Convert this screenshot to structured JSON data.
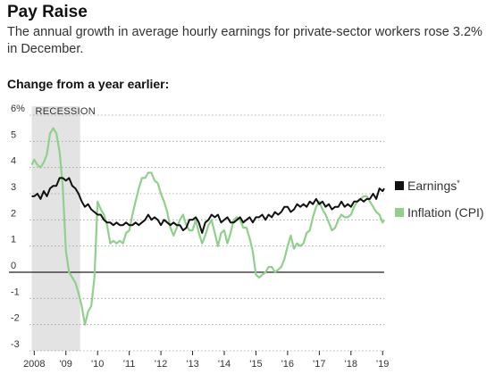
{
  "header": {
    "title": "Pay Raise",
    "subtitle": "The annual growth in average hourly earnings for private-sector workers rose 3.2% in December.",
    "section_label": "Change from a year earlier:"
  },
  "chart_data": {
    "type": "line",
    "title": "Pay Raise",
    "subtitle": "The annual growth in average hourly earnings for private-sector workers rose 3.2% in December.",
    "ylabel": "Change from a year earlier:",
    "ylim": [
      -3,
      6
    ],
    "xlim": [
      2007.85,
      2019.05
    ],
    "y_ticks": [
      -3,
      -2,
      -1,
      0,
      1,
      2,
      3,
      4,
      5,
      6
    ],
    "y_tick_labels": [
      "-3",
      "-2",
      "-1",
      "0",
      "1",
      "2",
      "3",
      "4",
      "5",
      "6%"
    ],
    "x_ticks": [
      2008,
      2009,
      2010,
      2011,
      2012,
      2013,
      2014,
      2015,
      2016,
      2017,
      2018,
      2019
    ],
    "x_tick_labels": [
      "2008",
      "'09",
      "'10",
      "'11",
      "'12",
      "'13",
      "'14",
      "'15",
      "'16",
      "'17",
      "'18",
      "'19"
    ],
    "recession": {
      "label": "RECESSION",
      "start": 2007.92,
      "end": 2009.45,
      "color": "#e3e3e3"
    },
    "legend": {
      "placement": "right"
    },
    "series": [
      {
        "name": "Earnings",
        "name_suffix": "*",
        "color": "#111111",
        "points": [
          [
            2007.92,
            2.9
          ],
          [
            2008.0,
            2.9
          ],
          [
            2008.1,
            3.0
          ],
          [
            2008.2,
            2.8
          ],
          [
            2008.3,
            3.1
          ],
          [
            2008.4,
            2.9
          ],
          [
            2008.5,
            3.2
          ],
          [
            2008.6,
            3.3
          ],
          [
            2008.7,
            3.3
          ],
          [
            2008.8,
            3.6
          ],
          [
            2008.9,
            3.6
          ],
          [
            2009.0,
            3.5
          ],
          [
            2009.1,
            3.6
          ],
          [
            2009.2,
            3.3
          ],
          [
            2009.3,
            3.2
          ],
          [
            2009.4,
            3.0
          ],
          [
            2009.5,
            2.7
          ],
          [
            2009.6,
            2.5
          ],
          [
            2009.7,
            2.6
          ],
          [
            2009.8,
            2.4
          ],
          [
            2009.9,
            2.3
          ],
          [
            2010.0,
            2.2
          ],
          [
            2010.1,
            2.2
          ],
          [
            2010.2,
            2.0
          ],
          [
            2010.3,
            1.9
          ],
          [
            2010.4,
            1.9
          ],
          [
            2010.5,
            1.8
          ],
          [
            2010.6,
            1.9
          ],
          [
            2010.7,
            1.8
          ],
          [
            2010.8,
            1.8
          ],
          [
            2010.9,
            1.9
          ],
          [
            2011.0,
            1.8
          ],
          [
            2011.1,
            1.8
          ],
          [
            2011.2,
            1.9
          ],
          [
            2011.3,
            1.8
          ],
          [
            2011.4,
            1.9
          ],
          [
            2011.5,
            2.0
          ],
          [
            2011.6,
            2.2
          ],
          [
            2011.7,
            2.0
          ],
          [
            2011.8,
            2.1
          ],
          [
            2011.9,
            2.0
          ],
          [
            2012.0,
            1.8
          ],
          [
            2012.1,
            2.0
          ],
          [
            2012.2,
            1.9
          ],
          [
            2012.3,
            1.8
          ],
          [
            2012.4,
            1.9
          ],
          [
            2012.5,
            1.8
          ],
          [
            2012.6,
            1.8
          ],
          [
            2012.7,
            1.6
          ],
          [
            2012.8,
            1.7
          ],
          [
            2012.9,
            2.0
          ],
          [
            2013.0,
            2.0
          ],
          [
            2013.1,
            2.1
          ],
          [
            2013.2,
            1.9
          ],
          [
            2013.3,
            1.5
          ],
          [
            2013.4,
            1.9
          ],
          [
            2013.5,
            2.0
          ],
          [
            2013.6,
            2.2
          ],
          [
            2013.7,
            2.1
          ],
          [
            2013.8,
            2.2
          ],
          [
            2013.9,
            1.9
          ],
          [
            2014.0,
            2.0
          ],
          [
            2014.1,
            2.1
          ],
          [
            2014.2,
            1.9
          ],
          [
            2014.3,
            1.9
          ],
          [
            2014.4,
            2.0
          ],
          [
            2014.5,
            2.1
          ],
          [
            2014.6,
            1.9
          ],
          [
            2014.7,
            2.0
          ],
          [
            2014.8,
            2.1
          ],
          [
            2014.9,
            1.9
          ],
          [
            2015.0,
            2.1
          ],
          [
            2015.1,
            2.1
          ],
          [
            2015.2,
            2.2
          ],
          [
            2015.3,
            2.0
          ],
          [
            2015.4,
            2.2
          ],
          [
            2015.5,
            2.1
          ],
          [
            2015.6,
            2.3
          ],
          [
            2015.7,
            2.2
          ],
          [
            2015.8,
            2.3
          ],
          [
            2015.9,
            2.5
          ],
          [
            2016.0,
            2.5
          ],
          [
            2016.1,
            2.3
          ],
          [
            2016.2,
            2.4
          ],
          [
            2016.3,
            2.6
          ],
          [
            2016.4,
            2.5
          ],
          [
            2016.5,
            2.6
          ],
          [
            2016.6,
            2.5
          ],
          [
            2016.7,
            2.7
          ],
          [
            2016.8,
            2.6
          ],
          [
            2016.9,
            2.8
          ],
          [
            2017.0,
            2.6
          ],
          [
            2017.1,
            2.7
          ],
          [
            2017.2,
            2.5
          ],
          [
            2017.3,
            2.6
          ],
          [
            2017.4,
            2.4
          ],
          [
            2017.5,
            2.5
          ],
          [
            2017.6,
            2.5
          ],
          [
            2017.7,
            2.7
          ],
          [
            2017.8,
            2.5
          ],
          [
            2017.9,
            2.6
          ],
          [
            2018.0,
            2.5
          ],
          [
            2018.1,
            2.7
          ],
          [
            2018.2,
            2.7
          ],
          [
            2018.3,
            2.8
          ],
          [
            2018.4,
            2.7
          ],
          [
            2018.5,
            2.8
          ],
          [
            2018.6,
            2.8
          ],
          [
            2018.7,
            3.0
          ],
          [
            2018.8,
            2.8
          ],
          [
            2018.9,
            3.2
          ],
          [
            2019.0,
            3.1
          ],
          [
            2019.05,
            3.2
          ]
        ]
      },
      {
        "name": "Inflation (CPI)",
        "color": "#8fd18a",
        "points": [
          [
            2007.92,
            4.1
          ],
          [
            2008.0,
            4.3
          ],
          [
            2008.1,
            4.1
          ],
          [
            2008.2,
            4.0
          ],
          [
            2008.3,
            4.2
          ],
          [
            2008.4,
            4.5
          ],
          [
            2008.5,
            5.3
          ],
          [
            2008.6,
            5.5
          ],
          [
            2008.7,
            5.3
          ],
          [
            2008.8,
            4.6
          ],
          [
            2008.9,
            3.3
          ],
          [
            2009.0,
            0.8
          ],
          [
            2009.1,
            0.0
          ],
          [
            2009.2,
            -0.2
          ],
          [
            2009.3,
            -0.4
          ],
          [
            2009.4,
            -0.8
          ],
          [
            2009.5,
            -1.3
          ],
          [
            2009.6,
            -2.0
          ],
          [
            2009.7,
            -1.5
          ],
          [
            2009.8,
            -1.3
          ],
          [
            2009.9,
            -0.2
          ],
          [
            2010.0,
            2.7
          ],
          [
            2010.1,
            2.4
          ],
          [
            2010.2,
            2.2
          ],
          [
            2010.3,
            1.8
          ],
          [
            2010.4,
            1.1
          ],
          [
            2010.5,
            1.2
          ],
          [
            2010.6,
            1.1
          ],
          [
            2010.7,
            1.2
          ],
          [
            2010.8,
            1.1
          ],
          [
            2010.9,
            1.5
          ],
          [
            2011.0,
            1.6
          ],
          [
            2011.1,
            2.2
          ],
          [
            2011.2,
            2.7
          ],
          [
            2011.3,
            3.2
          ],
          [
            2011.4,
            3.6
          ],
          [
            2011.5,
            3.6
          ],
          [
            2011.6,
            3.8
          ],
          [
            2011.7,
            3.8
          ],
          [
            2011.8,
            3.5
          ],
          [
            2011.9,
            3.4
          ],
          [
            2012.0,
            3.0
          ],
          [
            2012.1,
            2.7
          ],
          [
            2012.2,
            2.3
          ],
          [
            2012.3,
            1.7
          ],
          [
            2012.4,
            1.4
          ],
          [
            2012.5,
            1.7
          ],
          [
            2012.6,
            2.0
          ],
          [
            2012.7,
            2.2
          ],
          [
            2012.8,
            1.8
          ],
          [
            2012.9,
            1.6
          ],
          [
            2013.0,
            1.6
          ],
          [
            2013.1,
            2.0
          ],
          [
            2013.2,
            1.5
          ],
          [
            2013.3,
            1.1
          ],
          [
            2013.4,
            1.4
          ],
          [
            2013.5,
            1.8
          ],
          [
            2013.6,
            2.0
          ],
          [
            2013.7,
            1.5
          ],
          [
            2013.8,
            1.0
          ],
          [
            2013.9,
            1.5
          ],
          [
            2014.0,
            1.6
          ],
          [
            2014.1,
            1.1
          ],
          [
            2014.2,
            1.5
          ],
          [
            2014.3,
            2.0
          ],
          [
            2014.4,
            2.1
          ],
          [
            2014.5,
            2.0
          ],
          [
            2014.6,
            1.7
          ],
          [
            2014.7,
            1.7
          ],
          [
            2014.8,
            1.3
          ],
          [
            2014.9,
            0.8
          ],
          [
            2015.0,
            -0.1
          ],
          [
            2015.1,
            -0.2
          ],
          [
            2015.2,
            -0.1
          ],
          [
            2015.3,
            0.0
          ],
          [
            2015.4,
            0.2
          ],
          [
            2015.5,
            0.2
          ],
          [
            2015.6,
            0.0
          ],
          [
            2015.7,
            0.1
          ],
          [
            2015.8,
            0.2
          ],
          [
            2015.9,
            0.5
          ],
          [
            2016.0,
            1.0
          ],
          [
            2016.1,
            1.4
          ],
          [
            2016.2,
            0.9
          ],
          [
            2016.3,
            1.1
          ],
          [
            2016.4,
            1.0
          ],
          [
            2016.5,
            1.1
          ],
          [
            2016.6,
            1.5
          ],
          [
            2016.7,
            1.6
          ],
          [
            2016.8,
            2.1
          ],
          [
            2016.9,
            2.5
          ],
          [
            2017.0,
            2.7
          ],
          [
            2017.1,
            2.4
          ],
          [
            2017.2,
            2.2
          ],
          [
            2017.3,
            1.9
          ],
          [
            2017.4,
            1.6
          ],
          [
            2017.5,
            1.7
          ],
          [
            2017.6,
            2.0
          ],
          [
            2017.7,
            2.2
          ],
          [
            2017.8,
            2.1
          ],
          [
            2017.9,
            2.1
          ],
          [
            2018.0,
            2.2
          ],
          [
            2018.1,
            2.5
          ],
          [
            2018.2,
            2.7
          ],
          [
            2018.3,
            2.8
          ],
          [
            2018.4,
            2.9
          ],
          [
            2018.5,
            2.9
          ],
          [
            2018.6,
            2.7
          ],
          [
            2018.7,
            2.5
          ],
          [
            2018.8,
            2.3
          ],
          [
            2018.9,
            2.2
          ],
          [
            2019.0,
            1.9
          ],
          [
            2019.05,
            2.0
          ]
        ]
      }
    ]
  }
}
